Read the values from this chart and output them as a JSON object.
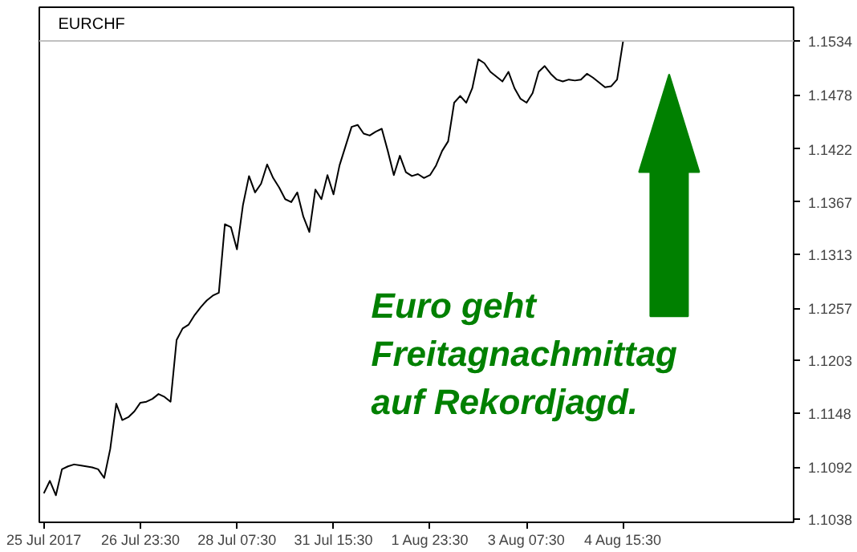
{
  "chart_data": {
    "type": "line",
    "title": "EURCHF",
    "categories": [
      "25 Jul 2017",
      null,
      null,
      null,
      null,
      null,
      null,
      null,
      null,
      null,
      null,
      null,
      null,
      null,
      null,
      null,
      "26 Jul 23:30",
      null,
      null,
      null,
      null,
      null,
      null,
      null,
      null,
      null,
      null,
      null,
      null,
      null,
      null,
      null,
      "28 Jul 07:30",
      null,
      null,
      null,
      null,
      null,
      null,
      null,
      null,
      null,
      null,
      null,
      null,
      null,
      null,
      null,
      "31 Jul 15:30",
      null,
      null,
      null,
      null,
      null,
      null,
      null,
      null,
      null,
      null,
      null,
      null,
      null,
      null,
      null,
      "1 Aug 23:30",
      null,
      null,
      null,
      null,
      null,
      null,
      null,
      null,
      null,
      null,
      null,
      null,
      null,
      null,
      null,
      "3 Aug 07:30",
      null,
      null,
      null,
      null,
      null,
      null,
      null,
      null,
      null,
      null,
      null,
      null,
      null,
      null,
      null,
      "4 Aug 15:30",
      null,
      null,
      null,
      null,
      null,
      null,
      null,
      null,
      null,
      null,
      null,
      null,
      null,
      null,
      null,
      null,
      null,
      null,
      null,
      null,
      null,
      null,
      null,
      null,
      null,
      null,
      null,
      null
    ],
    "series": [
      {
        "color": "#000000",
        "values": [
          1.1065,
          1.1078,
          1.1063,
          1.109,
          1.1093,
          1.1095,
          1.1094,
          1.1093,
          1.1092,
          1.109,
          1.1081,
          1.1111,
          1.1158,
          1.1141,
          1.1144,
          1.115,
          1.1159,
          1.116,
          1.1163,
          1.1168,
          1.1165,
          1.116,
          1.1224,
          1.1236,
          1.124,
          1.125,
          1.1258,
          1.1265,
          1.127,
          1.1273,
          1.1344,
          1.1341,
          1.1318,
          1.1364,
          1.1394,
          1.1377,
          1.1386,
          1.1406,
          1.1392,
          1.1382,
          1.137,
          1.1367,
          1.1377,
          1.1352,
          1.1336,
          1.138,
          1.137,
          1.1395,
          1.1375,
          1.1405,
          1.1425,
          1.1445,
          1.1447,
          1.1438,
          1.1436,
          1.144,
          1.1443,
          1.142,
          1.1395,
          1.1415,
          1.1398,
          1.1394,
          1.1396,
          1.1392,
          1.1395,
          1.1405,
          1.142,
          1.143,
          1.147,
          1.1477,
          1.147,
          1.1485,
          1.1515,
          1.1511,
          1.1502,
          1.1497,
          1.1492,
          1.1502,
          1.1485,
          1.1474,
          1.147,
          1.148,
          1.1502,
          1.1508,
          1.15,
          1.1494,
          1.1492,
          1.1494,
          1.1493,
          1.1494,
          1.15,
          1.1496,
          1.1491,
          1.1486,
          1.1487,
          1.1494,
          1.1534,
          null,
          null,
          null,
          null,
          null,
          null,
          null,
          null,
          null,
          null,
          null,
          null,
          null,
          null,
          null,
          null,
          null,
          null,
          null,
          null,
          null,
          null,
          null,
          null,
          null,
          null,
          null,
          null
        ]
      }
    ],
    "ylim": [
      1.1035,
      1.1569
    ],
    "yticks": [
      1.1038,
      1.1092,
      1.1148,
      1.1203,
      1.1257,
      1.1313,
      1.1367,
      1.1422,
      1.1478,
      1.1534
    ],
    "ref_lines": [
      {
        "axis": "y",
        "value": 1.1534,
        "color": "#c0c0c0"
      }
    ],
    "annotations": [
      "Euro geht\nFreitagnachmittag\nauf Rekordjagd."
    ],
    "grid": false
  }
}
